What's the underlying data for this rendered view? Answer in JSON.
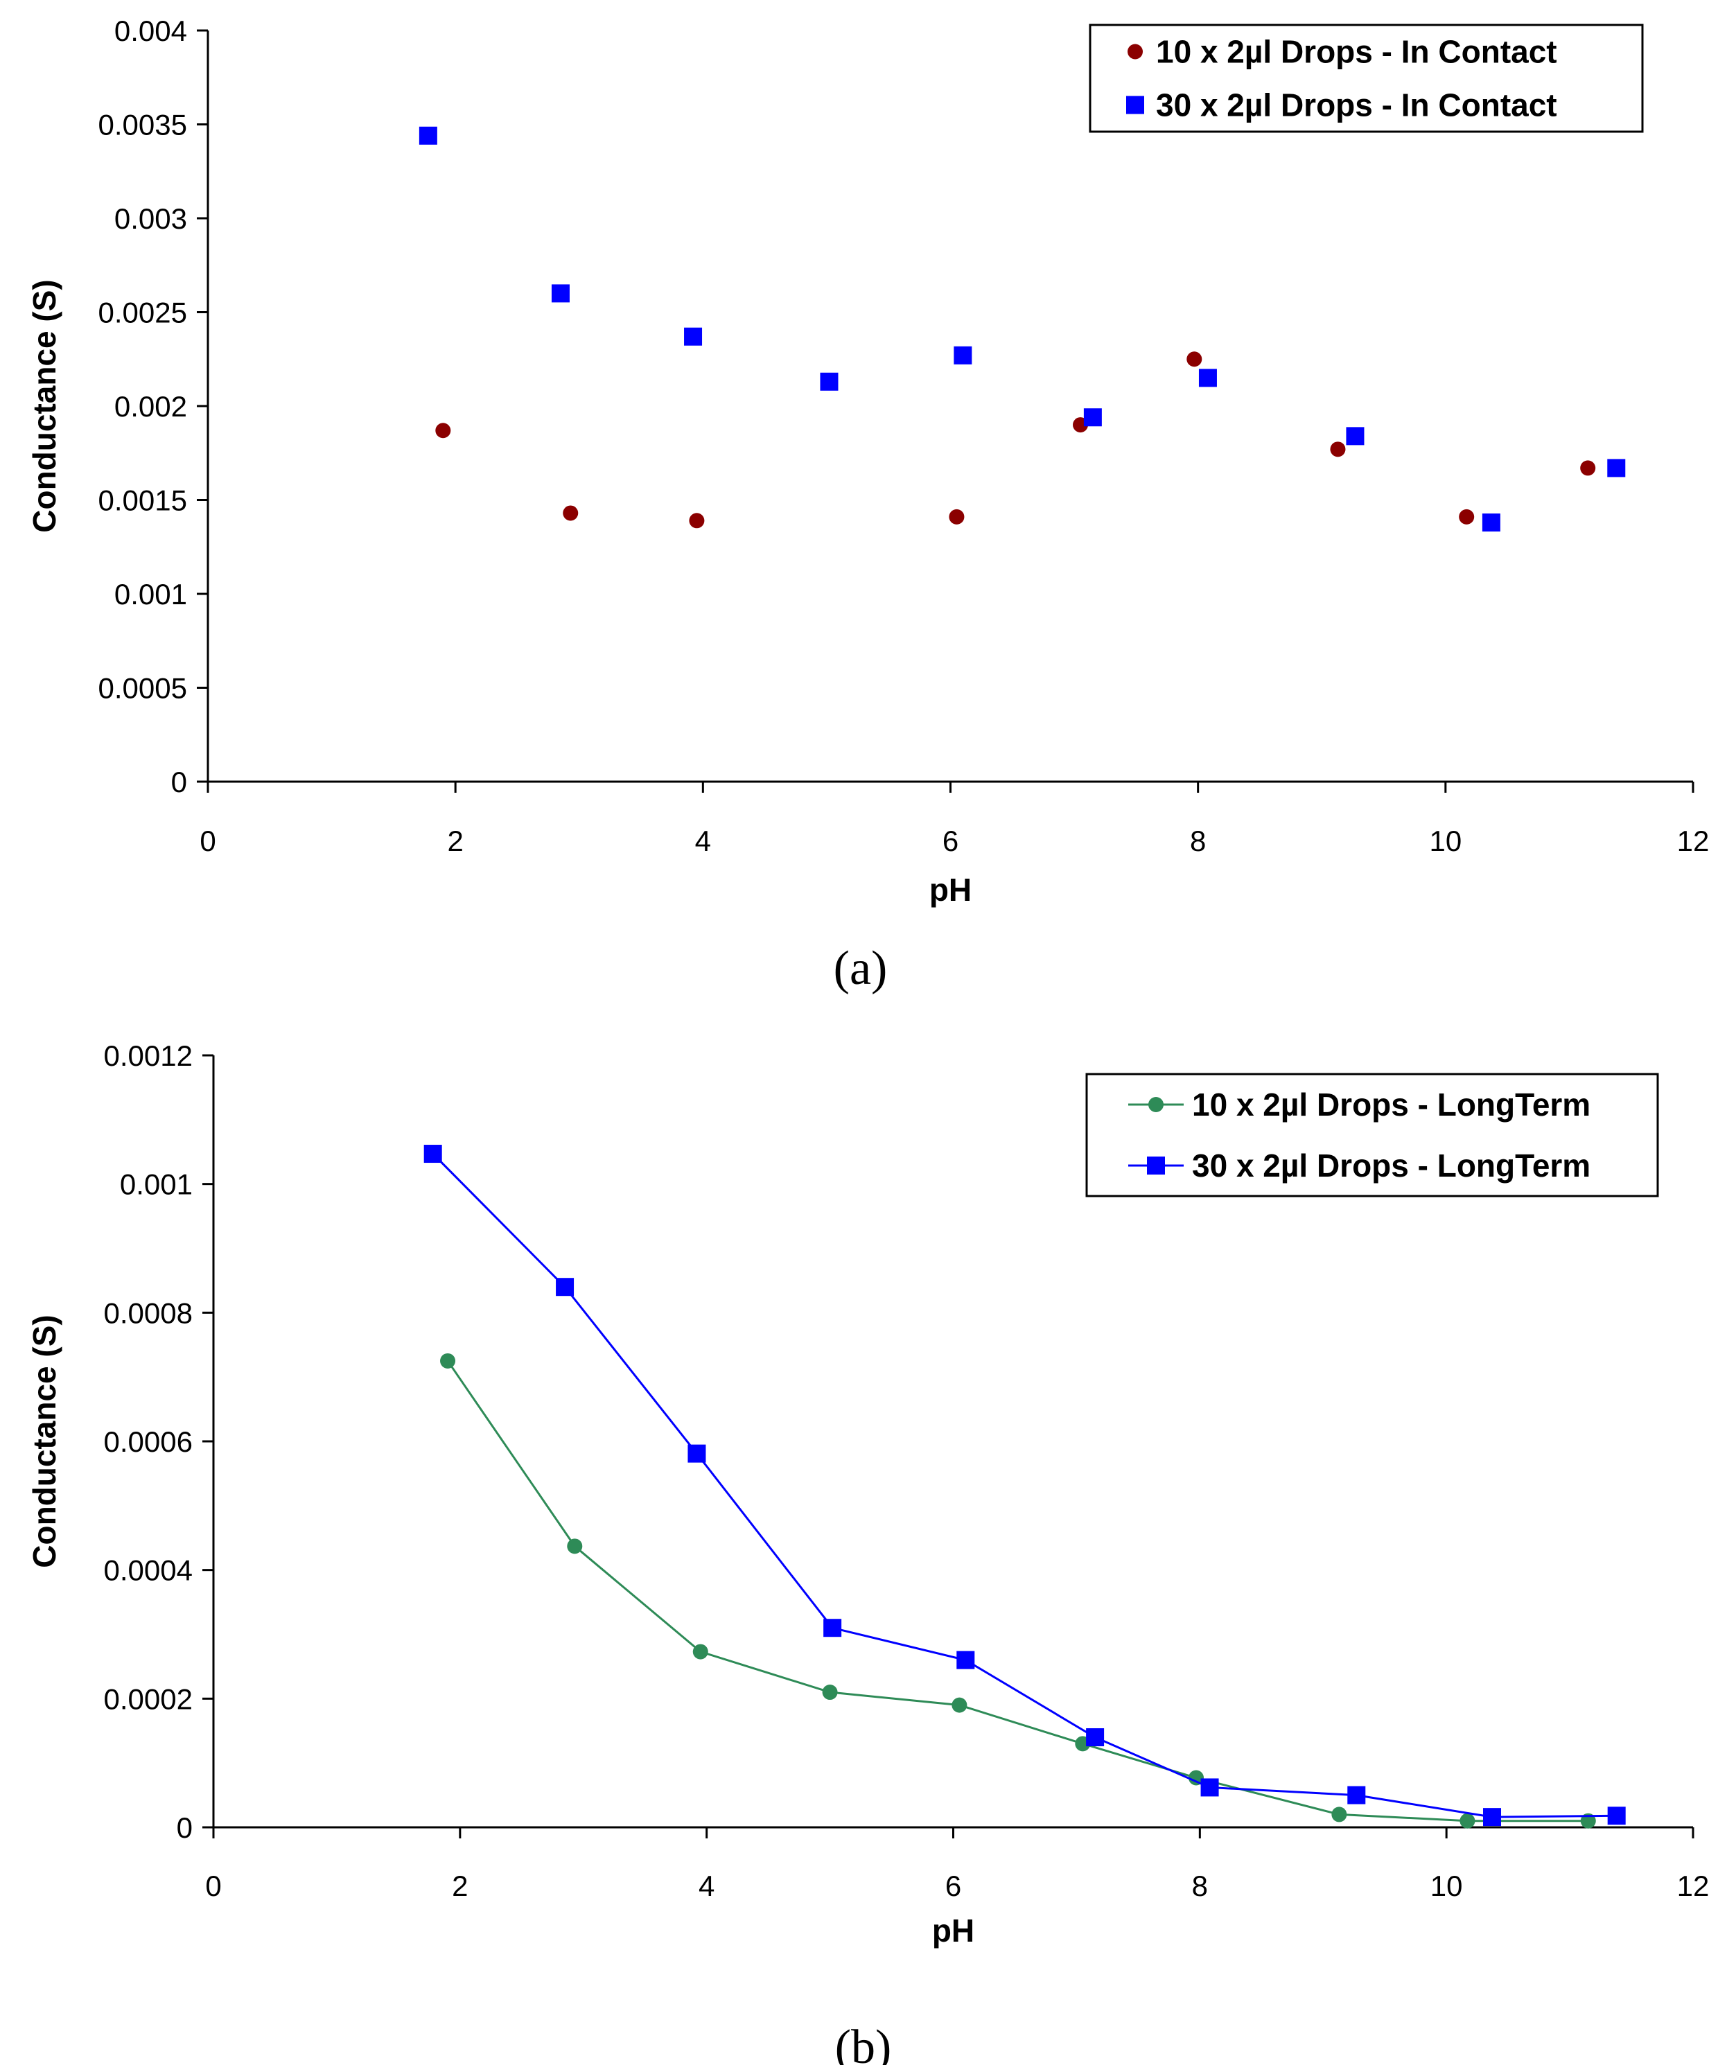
{
  "chart_data": [
    {
      "type": "scatter",
      "caption": "(a)",
      "xlabel": "pH",
      "ylabel": "Conductance (S)",
      "xlim": [
        0,
        12
      ],
      "ylim": [
        0,
        0.004
      ],
      "xticks": [
        "0",
        "2",
        "4",
        "6",
        "8",
        "10",
        "12"
      ],
      "yticks": [
        "0",
        "0.0005",
        "0.001",
        "0.0015",
        "0.002",
        "0.0025",
        "0.003",
        "0.0035",
        "0.004"
      ],
      "legend_position": "top-right",
      "grid": false,
      "series": [
        {
          "name": "10 x 2µl Drops - In Contact",
          "marker": "circle",
          "color": "#8b0000",
          "x": [
            1.9,
            2.93,
            3.95,
            6.05,
            7.05,
            7.97,
            9.13,
            10.17,
            11.15
          ],
          "y": [
            0.00187,
            0.00143,
            0.00139,
            0.00141,
            0.0019,
            0.00225,
            0.00177,
            0.00141,
            0.00167
          ]
        },
        {
          "name": "30 x 2µl Drops - In Contact",
          "marker": "square",
          "color": "#0000ff",
          "x": [
            1.78,
            2.85,
            3.92,
            5.02,
            6.1,
            7.15,
            8.08,
            9.27,
            10.37,
            11.38
          ],
          "y": [
            0.00344,
            0.0026,
            0.00237,
            0.00213,
            0.00227,
            0.00194,
            0.00215,
            0.00184,
            0.00138,
            0.00167
          ]
        }
      ]
    },
    {
      "type": "line",
      "caption": "(b)",
      "xlabel": "pH",
      "ylabel": "Conductance (S)",
      "xlim": [
        0,
        12
      ],
      "ylim": [
        0,
        0.0012
      ],
      "xticks": [
        "0",
        "2",
        "4",
        "6",
        "8",
        "10",
        "12"
      ],
      "yticks": [
        "0",
        "0.0002",
        "0.0004",
        "0.0006",
        "0.0008",
        "0.001",
        "0.0012"
      ],
      "legend_position": "top-right",
      "grid": false,
      "series": [
        {
          "name": "10 x 2µl Drops - LongTerm",
          "marker": "circle",
          "color": "#2e8b57",
          "x": [
            1.9,
            2.93,
            3.95,
            5.0,
            6.05,
            7.05,
            7.97,
            9.13,
            10.17,
            11.15
          ],
          "y": [
            0.000725,
            0.000437,
            0.000273,
            0.00021,
            0.00019,
            0.00013,
            7.7e-05,
            2e-05,
            1e-05,
            1e-05
          ]
        },
        {
          "name": "30 x 2µl Drops - LongTerm",
          "marker": "square",
          "color": "#0000ff",
          "x": [
            1.78,
            2.85,
            3.92,
            5.02,
            6.1,
            7.15,
            8.08,
            9.27,
            10.37,
            11.38
          ],
          "y": [
            0.001047,
            0.00084,
            0.000581,
            0.00031,
            0.00026,
            0.00014,
            6.2e-05,
            5e-05,
            1.6e-05,
            1.8e-05
          ]
        }
      ]
    }
  ]
}
